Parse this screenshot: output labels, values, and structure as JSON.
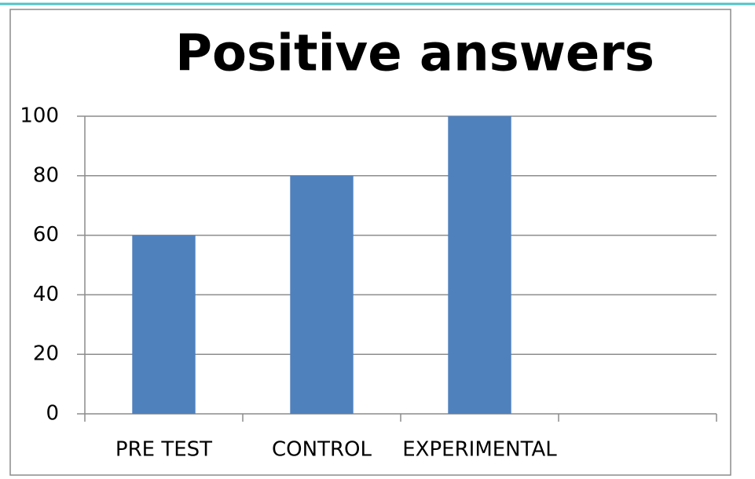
{
  "chart_data": {
    "type": "bar",
    "title": "Positive answers",
    "categories": [
      "PRE TEST",
      "CONTROL",
      "EXPERIMENTAL",
      null
    ],
    "values": [
      60,
      80,
      100,
      null
    ],
    "color": "#4f81bd",
    "ylim": [
      0,
      100
    ],
    "yticks": [
      0,
      20,
      40,
      60,
      80,
      100
    ],
    "grid": true
  }
}
